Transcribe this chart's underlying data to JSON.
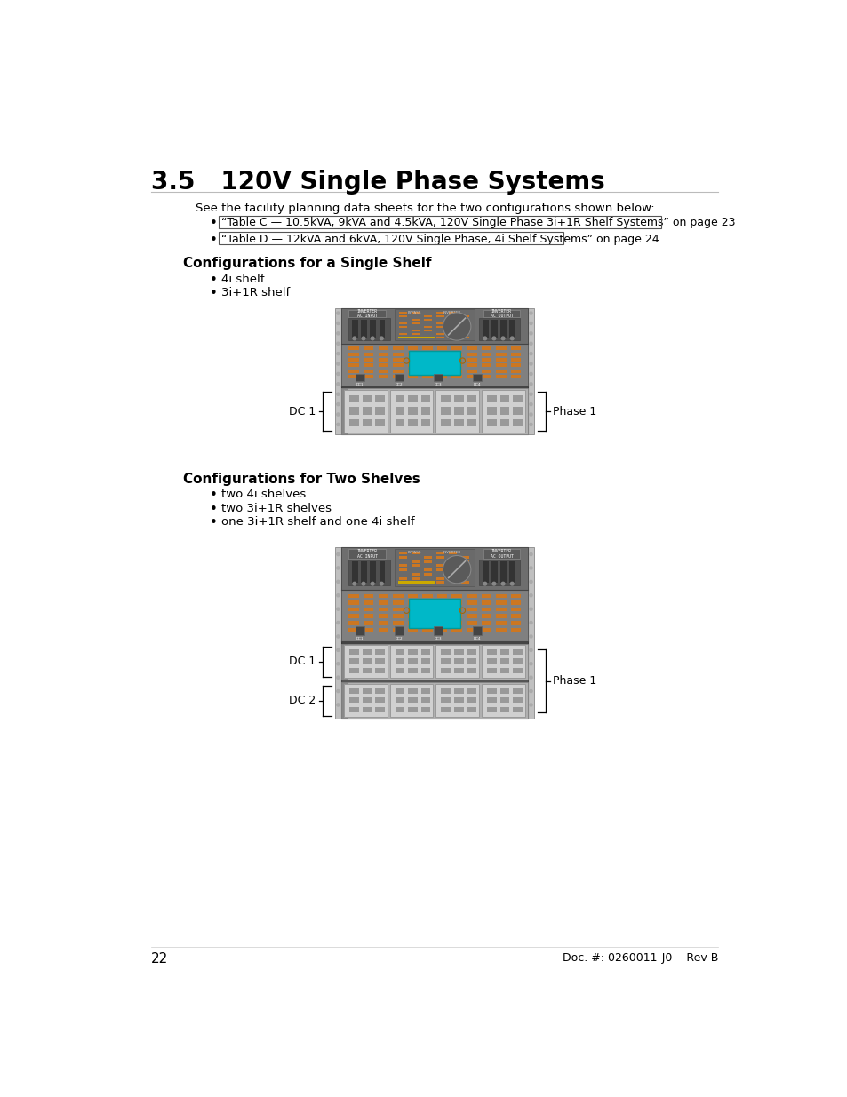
{
  "page_bg": "#ffffff",
  "section_number": "3.5",
  "section_title": "120V Single Phase Systems",
  "intro_text": "See the facility planning data sheets for the two configurations shown below:",
  "link1": "“Table C — 10.5kVA, 9kVA and 4.5kVA, 120V Single Phase 3i+1R Shelf Systems” on page 23",
  "link2": "“Table D — 12kVA and 6kVA, 120V Single Phase, 4i Shelf Systems” on page 24",
  "single_shelf_title": "Configurations for a Single Shelf",
  "single_shelf_bullets": [
    "4i shelf",
    "3i+1R shelf"
  ],
  "two_shelf_title": "Configurations for Two Shelves",
  "two_shelf_bullets": [
    "two 4i shelves",
    "two 3i+1R shelves",
    "one 3i+1R shelf and one 4i shelf"
  ],
  "page_number": "22",
  "doc_number": "Doc. #: 0260011-J0    Rev B"
}
